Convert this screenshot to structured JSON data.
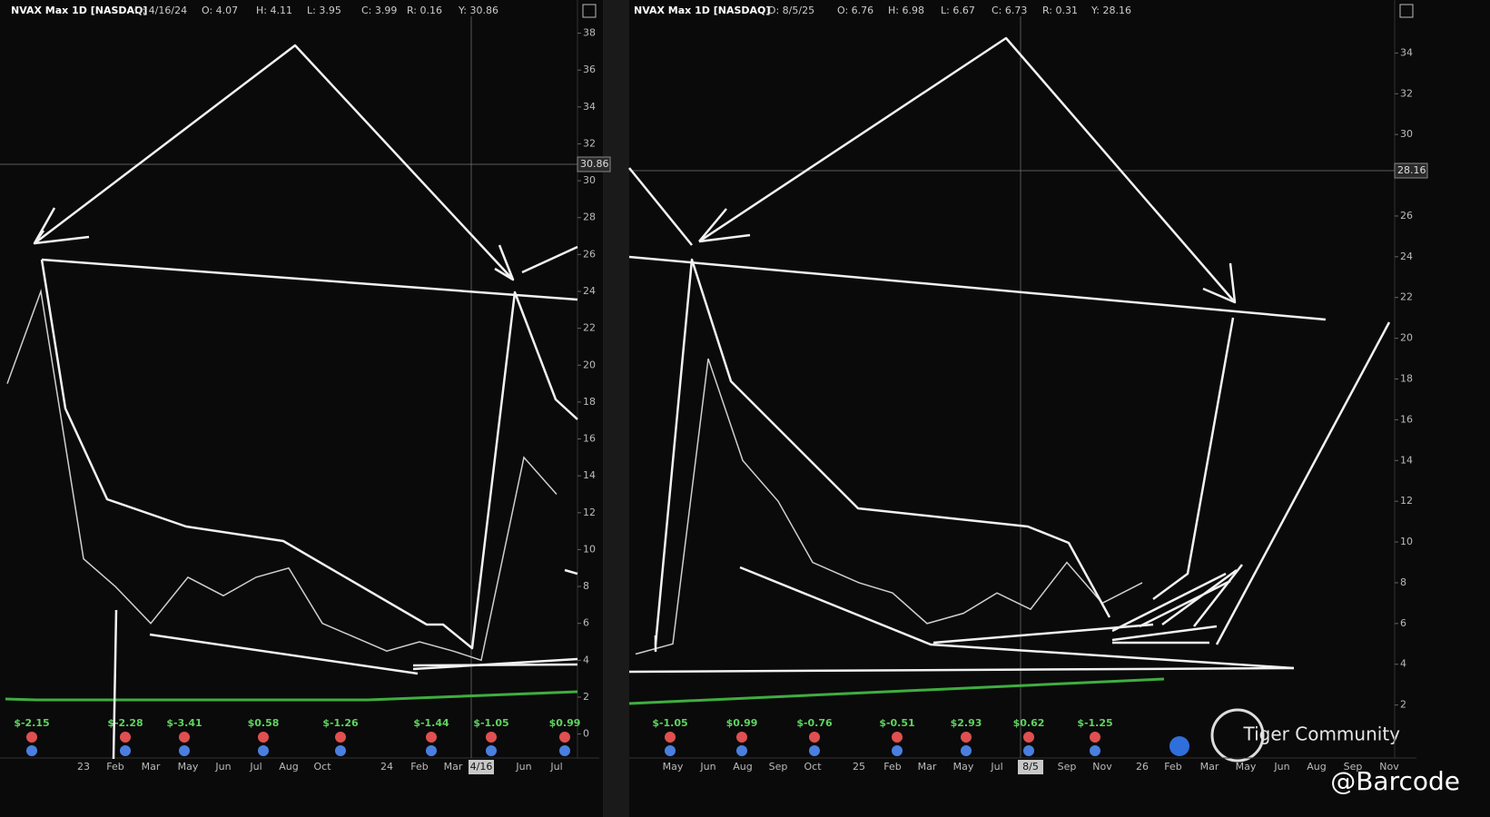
{
  "chart_data": [
    {
      "type": "line",
      "header": [
        "NVAX Max 1D [NASDAQ]",
        "D: 4/16/24",
        "O: 4.07",
        "H: 4.11",
        "L: 3.95",
        "C: 3.99",
        "R: 0.16",
        "Y: 30.86"
      ],
      "crosshair_label": "30.86",
      "categories": [
        null,
        null,
        "23",
        "Feb",
        "Mar",
        "May",
        "Jun",
        "Jul",
        "Aug",
        "Oct",
        "24",
        "Feb",
        "Mar",
        "4/16",
        "Jun",
        "Jul"
      ],
      "values": [
        19,
        24,
        9.5,
        8,
        6,
        8.5,
        7.5,
        8.5,
        9,
        6,
        4.5,
        5,
        4.5,
        4,
        15,
        13
      ],
      "color": "#cfcfcf",
      "ylim": [
        -1.3,
        39.8
      ],
      "yticks": [
        0,
        2,
        4,
        6,
        8,
        10,
        12,
        14,
        16,
        18,
        20,
        22,
        24,
        26,
        28,
        30,
        32,
        34,
        36,
        38
      ],
      "earnings": [
        "$-2.15",
        "$-2.28",
        "$-3.41",
        "$0.58",
        "$-1.26",
        "$-1.44",
        "$-1.05",
        "$0.99"
      ]
    },
    {
      "type": "line",
      "header": [
        "NVAX Max 1D [NASDAQ]",
        "D: 8/5/25",
        "O: 6.76",
        "H: 6.98",
        "L: 6.67",
        "C: 6.73",
        "R: 0.31",
        "Y: 28.16"
      ],
      "crosshair_label": "28.16",
      "categories": [
        null,
        "May",
        "Jun",
        "Aug",
        "Sep",
        "Oct",
        "25",
        "Feb",
        "Mar",
        "May",
        "Jul",
        "8/5",
        "Sep",
        "Nov",
        "26",
        "Feb",
        "Mar",
        "May",
        "Jun",
        "Aug",
        "Sep",
        "Nov"
      ],
      "values": [
        4.5,
        5,
        19,
        14,
        12,
        9,
        8,
        7.5,
        6,
        6.5,
        7.5,
        6.7,
        9,
        7,
        8,
        null,
        null,
        null,
        null,
        null,
        null,
        null
      ],
      "color": "#cfcfcf",
      "ylim": [
        -0.6,
        36.6
      ],
      "yticks": [
        2,
        4,
        6,
        8,
        10,
        12,
        14,
        16,
        18,
        20,
        22,
        24,
        26,
        28,
        30,
        32,
        34
      ],
      "earnings": [
        "$-1.05",
        "$0.99",
        "$-0.76",
        "$-0.51",
        "$2.93",
        "$0.62",
        "$-1.25"
      ]
    }
  ],
  "watermark": {
    "brand": "Tiger Community",
    "handle": "@Barcode"
  }
}
